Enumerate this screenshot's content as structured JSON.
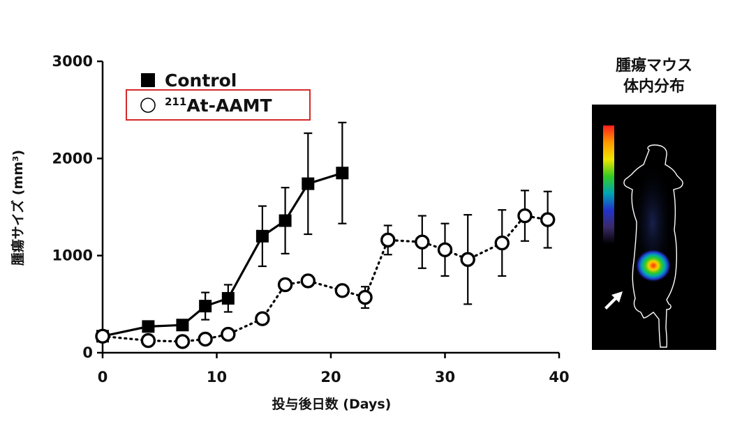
{
  "chart_data": {
    "type": "line",
    "xlabel": "投与後日数 (Days)",
    "ylabel": "腫瘍サイズ (mm³)",
    "xlim": [
      0,
      40
    ],
    "ylim": [
      0,
      3000
    ],
    "x_ticks": [
      0,
      10,
      20,
      30,
      40
    ],
    "y_ticks": [
      0,
      1000,
      2000,
      3000
    ],
    "grid": false,
    "legend_position": "top-left",
    "series": [
      {
        "name": "Control",
        "legend_sup": "",
        "legend_main": "Control",
        "marker": "filled-square",
        "line_style": "solid",
        "color": "#000000",
        "highlighted": false,
        "x": [
          0,
          4,
          7,
          9,
          11,
          14,
          16,
          18,
          21
        ],
        "values": [
          170,
          270,
          285,
          480,
          560,
          1200,
          1360,
          1740,
          1850
        ],
        "error": [
          0,
          30,
          30,
          140,
          140,
          310,
          340,
          520,
          520
        ]
      },
      {
        "name": "211At-AAMT",
        "legend_sup": "211",
        "legend_main": "At-AAMT",
        "marker": "open-circle",
        "line_style": "dotted",
        "color": "#000000",
        "highlighted": true,
        "x": [
          0,
          4,
          7,
          9,
          11,
          14,
          16,
          18,
          21,
          23,
          25,
          28,
          30,
          32,
          35,
          37,
          39
        ],
        "values": [
          170,
          125,
          115,
          140,
          190,
          350,
          700,
          740,
          640,
          570,
          1160,
          1140,
          1060,
          960,
          1130,
          1410,
          1370
        ],
        "error": [
          0,
          0,
          0,
          0,
          0,
          0,
          0,
          0,
          0,
          110,
          150,
          270,
          270,
          460,
          340,
          260,
          290
        ]
      }
    ],
    "legend_highlight_color": "#d42a2a"
  },
  "side_panel": {
    "title_line1": "腫瘍マウス",
    "title_line2": "体内分布",
    "image_description": "mouse body outline, heatmap signal at tumor, arrow pointing to tumor",
    "colorbar_colors": [
      "#ff1e1e",
      "#ff9a00",
      "#f2e600",
      "#33cc22",
      "#00a6b3",
      "#2233cc",
      "#3a2a6a",
      "#000000"
    ],
    "background_color": "#000000"
  }
}
